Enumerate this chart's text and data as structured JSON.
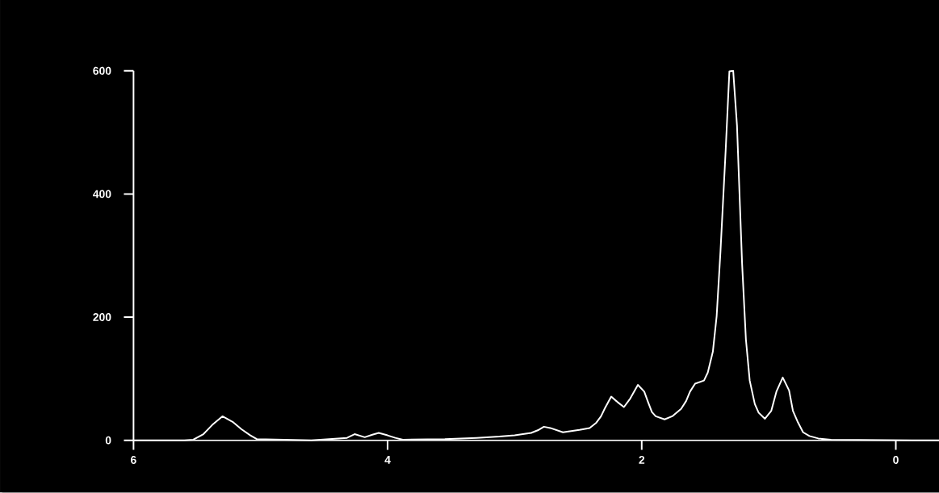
{
  "chart_data": {
    "type": "line",
    "color": "#ffffff",
    "x": [
      6.0,
      5.6,
      5.53,
      5.45,
      5.38,
      5.3,
      5.22,
      5.15,
      5.08,
      5.03,
      4.6,
      4.32,
      4.26,
      4.18,
      4.12,
      4.07,
      4.0,
      3.94,
      3.88,
      3.55,
      3.3,
      3.12,
      3.0,
      2.87,
      2.81,
      2.77,
      2.72,
      2.62,
      2.49,
      2.41,
      2.36,
      2.32,
      2.29,
      2.24,
      2.19,
      2.14,
      2.09,
      2.03,
      1.98,
      1.95,
      1.92,
      1.89,
      1.82,
      1.76,
      1.69,
      1.65,
      1.62,
      1.58,
      1.51,
      1.48,
      1.44,
      1.41,
      1.38,
      1.34,
      1.31,
      1.28,
      1.25,
      1.21,
      1.18,
      1.15,
      1.11,
      1.08,
      1.03,
      0.98,
      0.94,
      0.89,
      0.84,
      0.81,
      0.77,
      0.73,
      0.68,
      0.61,
      0.51,
      -0.13,
      -0.34
    ],
    "values": [
      0,
      0,
      1,
      10,
      25,
      39,
      30,
      18,
      8,
      2,
      0,
      4,
      10,
      5,
      9,
      12,
      8,
      4,
      1,
      2,
      4,
      6,
      8,
      12,
      17,
      22,
      20,
      13,
      17,
      20,
      28,
      39,
      52,
      71,
      62,
      54,
      68,
      90,
      79,
      62,
      46,
      39,
      34,
      39,
      51,
      64,
      79,
      92,
      97,
      110,
      144,
      202,
      307,
      468,
      599,
      600,
      511,
      287,
      164,
      97,
      59,
      45,
      35,
      48,
      79,
      102,
      81,
      48,
      29,
      13,
      7,
      3,
      1,
      0,
      0
    ],
    "xlim": [
      6,
      -0.34
    ],
    "ylim": [
      0,
      600
    ],
    "xticks": [
      6,
      4,
      2,
      0
    ],
    "yticks": [
      0,
      200,
      400,
      600
    ],
    "grid": false,
    "marker": "none",
    "line_style": "solid"
  }
}
